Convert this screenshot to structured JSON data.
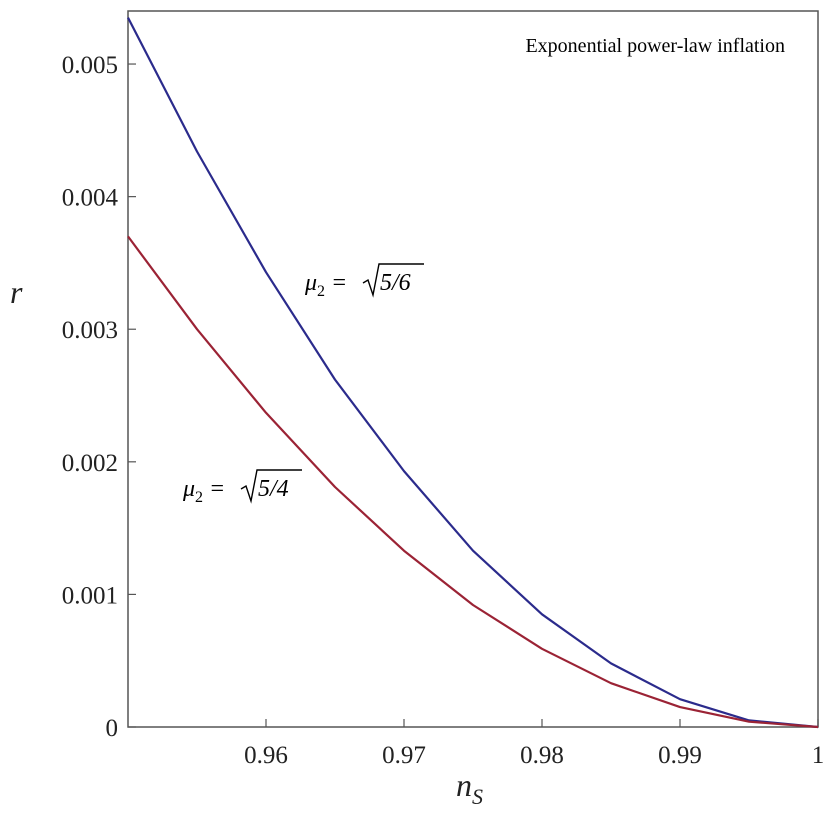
{
  "chart_data": {
    "type": "line",
    "title": "Exponential power-law inflation",
    "xlabel": "n",
    "xlabel_sub": "S",
    "ylabel": "r",
    "xlim": [
      0.95,
      1.0
    ],
    "ylim": [
      0,
      0.0054
    ],
    "xticks": [
      0.96,
      0.97,
      0.98,
      0.99,
      1.0
    ],
    "xtick_labels": [
      "0.96",
      "0.97",
      "0.98",
      "0.99",
      "1"
    ],
    "yticks": [
      0,
      0.001,
      0.002,
      0.003,
      0.004,
      0.005
    ],
    "ytick_labels": [
      "0",
      "0.001",
      "0.002",
      "0.003",
      "0.004",
      "0.005"
    ],
    "grid": false,
    "series": [
      {
        "color": "#2b2b8c",
        "label_parts": {
          "mu": "μ",
          "sub": "2",
          "eq": " = ",
          "radicand": "5/6"
        },
        "x": [
          0.95,
          0.955,
          0.96,
          0.965,
          0.97,
          0.975,
          0.98,
          0.985,
          0.99,
          0.995,
          1.0
        ],
        "y": [
          0.00535,
          0.00434,
          0.00343,
          0.00262,
          0.00193,
          0.00133,
          0.00085,
          0.00048,
          0.00021,
          5e-05,
          0.0
        ]
      },
      {
        "color": "#9b2335",
        "label_parts": {
          "mu": "μ",
          "sub": "2",
          "eq": " = ",
          "radicand": "5/4"
        },
        "x": [
          0.95,
          0.955,
          0.96,
          0.965,
          0.97,
          0.975,
          0.98,
          0.985,
          0.99,
          0.995,
          1.0
        ],
        "y": [
          0.0037,
          0.003,
          0.00237,
          0.00181,
          0.00133,
          0.00092,
          0.00059,
          0.00033,
          0.00015,
          4e-05,
          0.0
        ]
      }
    ]
  }
}
